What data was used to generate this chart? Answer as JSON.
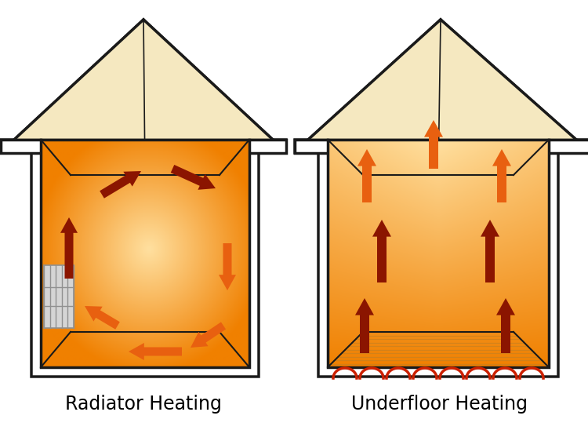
{
  "bg_color": "#ffffff",
  "outline_color": "#1a1a1a",
  "roof_fill": "#f5e8c0",
  "room_orange_dark": "#f08000",
  "room_orange_light": "#ffe0a0",
  "side_wall_color": "#e8a030",
  "floor_color": "#f0c060",
  "arrow_dark": "#8b1500",
  "arrow_orange": "#e86010",
  "radiator_color": "#c8c8c8",
  "pipe_color": "#cc2000",
  "label_left": "Radiator Heating",
  "label_right": "Underfloor Heating",
  "label_fontsize": 17,
  "lw_house": 2.5,
  "lw_inner": 1.5
}
